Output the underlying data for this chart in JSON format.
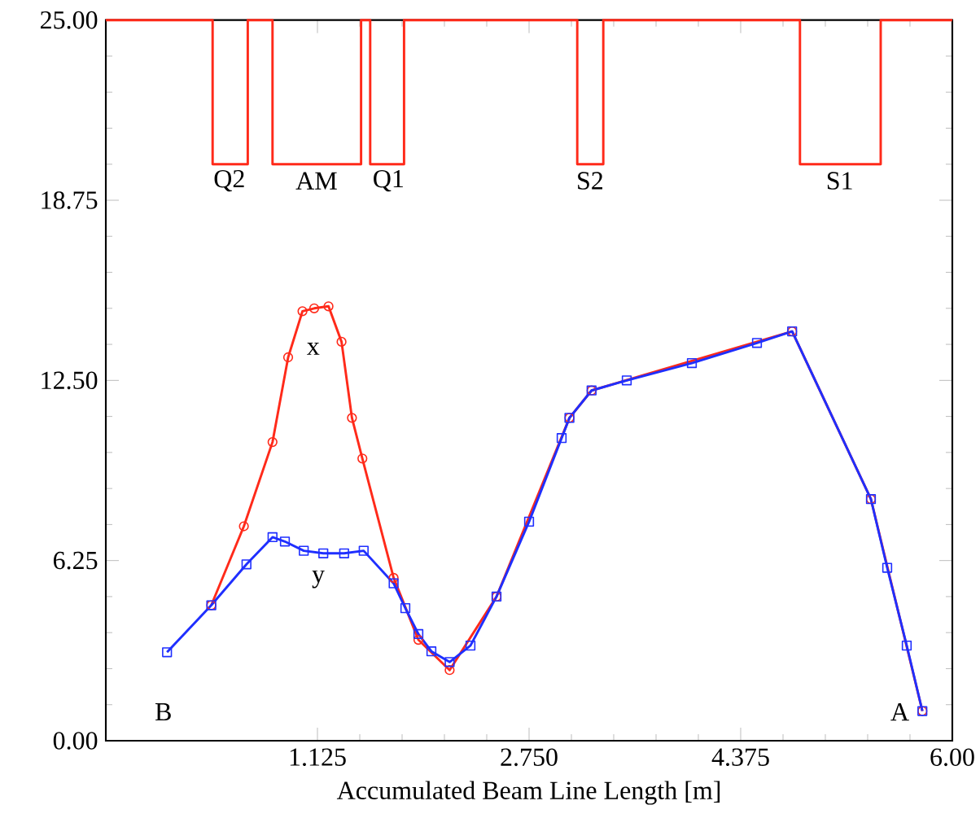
{
  "chart_data": {
    "type": "line",
    "xlabel": "Accumulated Beam Line Length [m]",
    "xlim": [
      -0.5,
      6.0
    ],
    "ylim": [
      0,
      25
    ],
    "xticks": [
      {
        "value": 1.125,
        "label": "1.125"
      },
      {
        "value": 2.75,
        "label": "2.750"
      },
      {
        "value": 4.375,
        "label": "4.375"
      },
      {
        "value": 6.0,
        "label": "6.00"
      }
    ],
    "yticks": [
      {
        "value": 0,
        "label": "0.00"
      },
      {
        "value": 6.25,
        "label": "6.25"
      },
      {
        "value": 12.5,
        "label": "12.50"
      },
      {
        "value": 18.75,
        "label": "18.75"
      },
      {
        "value": 25,
        "label": "25.00"
      }
    ],
    "grid": false,
    "series": [
      {
        "color": "#ff2a1a",
        "marker": "none",
        "x": [
          -0.5,
          0.32,
          0.32,
          0.59,
          0.59,
          0.78,
          0.78,
          1.46,
          1.46,
          1.53,
          1.53,
          1.79,
          1.79,
          3.12,
          3.12,
          3.32,
          3.32,
          4.83,
          4.83,
          5.45,
          5.45,
          6.0
        ],
        "values": [
          25,
          25,
          20,
          20,
          25,
          25,
          20,
          20,
          25,
          25,
          20,
          20,
          25,
          25,
          20,
          20,
          25,
          25,
          20,
          20,
          25,
          25
        ]
      },
      {
        "color": "#ff2a1a",
        "marker": "circle",
        "x": [
          0.31,
          0.56,
          0.78,
          0.9,
          1.01,
          1.1,
          1.21,
          1.31,
          1.39,
          1.47,
          1.71,
          1.9,
          2.14,
          2.5,
          3.06,
          3.23,
          4.77,
          5.375,
          5.77
        ],
        "values": [
          4.7,
          7.44,
          10.36,
          13.3,
          14.9,
          15.0,
          15.07,
          13.84,
          11.2,
          9.79,
          5.65,
          3.5,
          2.45,
          5.0,
          11.2,
          12.15,
          14.2,
          8.38,
          1.03
        ]
      },
      {
        "color": "#1f2fff",
        "marker": "square",
        "x": [
          -0.03,
          0.31,
          0.58,
          0.78,
          0.875,
          1.02,
          1.17,
          1.33,
          1.48,
          1.71,
          1.8,
          1.9,
          2.0,
          2.14,
          2.3,
          2.5,
          2.75,
          3.0,
          3.06,
          3.23,
          3.5,
          4.0,
          4.5,
          4.77,
          5.375,
          5.5,
          5.65,
          5.77
        ],
        "values": [
          3.07,
          4.7,
          6.12,
          7.06,
          6.91,
          6.59,
          6.5,
          6.5,
          6.59,
          5.46,
          4.6,
          3.7,
          3.1,
          2.73,
          3.3,
          5.0,
          7.6,
          10.5,
          11.2,
          12.15,
          12.5,
          13.1,
          13.8,
          14.2,
          8.38,
          6.0,
          3.3,
          1.03
        ]
      }
    ],
    "annotations": [
      "Q2",
      "AM",
      "Q1",
      "S2",
      "S1",
      "x",
      "y",
      "B",
      "A"
    ]
  }
}
